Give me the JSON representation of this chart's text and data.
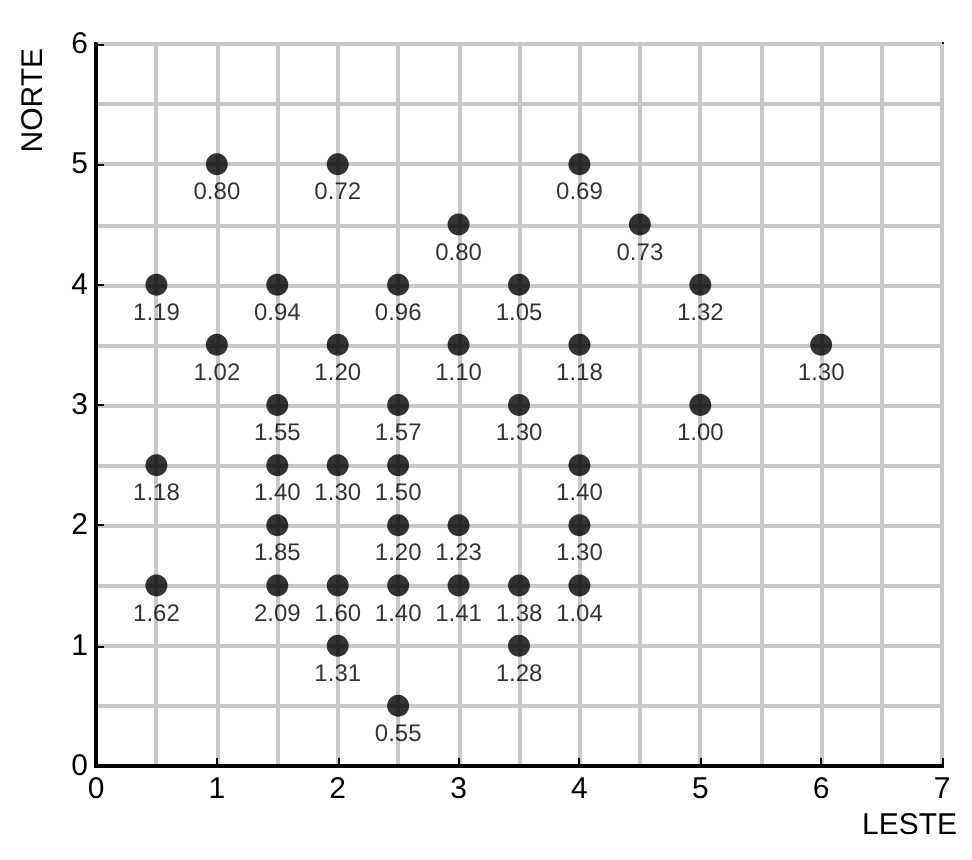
{
  "chart_data": {
    "type": "scatter",
    "xlabel": "LESTE",
    "ylabel": "NORTE",
    "x": [
      1,
      2,
      4,
      3,
      4.5,
      0.5,
      1.5,
      2.5,
      3.5,
      5,
      1,
      2,
      3,
      4,
      6,
      1.5,
      2.5,
      3.5,
      5,
      0.5,
      1.5,
      2,
      2.5,
      4,
      1.5,
      2.5,
      3,
      4,
      0.5,
      1.5,
      2,
      2.5,
      3,
      3.5,
      4,
      2,
      3.5,
      2.5
    ],
    "values": [
      5,
      5,
      5,
      4.5,
      4.5,
      4,
      4,
      4,
      4,
      4,
      3.5,
      3.5,
      3.5,
      3.5,
      3.5,
      3,
      3,
      3,
      3,
      2.5,
      2.5,
      2.5,
      2.5,
      2.5,
      2,
      2,
      2,
      2,
      1.5,
      1.5,
      1.5,
      1.5,
      1.5,
      1.5,
      1.5,
      1,
      1,
      0.5
    ],
    "annotations": [
      {
        "text": "0.80",
        "x": 1,
        "y": 5
      },
      {
        "text": "0.72",
        "x": 2,
        "y": 5
      },
      {
        "text": "0.69",
        "x": 4,
        "y": 5
      },
      {
        "text": "0.80",
        "x": 3,
        "y": 4.5
      },
      {
        "text": "0.73",
        "x": 4.5,
        "y": 4.5
      },
      {
        "text": "1.19",
        "x": 0.5,
        "y": 4
      },
      {
        "text": "0.94",
        "x": 1.5,
        "y": 4
      },
      {
        "text": "0.96",
        "x": 2.5,
        "y": 4
      },
      {
        "text": "1.05",
        "x": 3.5,
        "y": 4
      },
      {
        "text": "1.32",
        "x": 5,
        "y": 4
      },
      {
        "text": "1.02",
        "x": 1,
        "y": 3.5
      },
      {
        "text": "1.20",
        "x": 2,
        "y": 3.5
      },
      {
        "text": "1.10",
        "x": 3,
        "y": 3.5
      },
      {
        "text": "1.18",
        "x": 4,
        "y": 3.5
      },
      {
        "text": "1.30",
        "x": 6,
        "y": 3.5
      },
      {
        "text": "1.55",
        "x": 1.5,
        "y": 3
      },
      {
        "text": "1.57",
        "x": 2.5,
        "y": 3
      },
      {
        "text": "1.30",
        "x": 3.5,
        "y": 3
      },
      {
        "text": "1.00",
        "x": 5,
        "y": 3
      },
      {
        "text": "1.18",
        "x": 0.5,
        "y": 2.5
      },
      {
        "text": "1.40",
        "x": 1.5,
        "y": 2.5
      },
      {
        "text": "1.30",
        "x": 2,
        "y": 2.5
      },
      {
        "text": "1.50",
        "x": 2.5,
        "y": 2.5
      },
      {
        "text": "1.40",
        "x": 4,
        "y": 2.5
      },
      {
        "text": "1.85",
        "x": 1.5,
        "y": 2
      },
      {
        "text": "1.20",
        "x": 2.5,
        "y": 2
      },
      {
        "text": "1.23",
        "x": 3,
        "y": 2
      },
      {
        "text": "1.30",
        "x": 4,
        "y": 2
      },
      {
        "text": "1.62",
        "x": 0.5,
        "y": 1.5
      },
      {
        "text": "2.09",
        "x": 1.5,
        "y": 1.5
      },
      {
        "text": "1.60",
        "x": 2,
        "y": 1.5
      },
      {
        "text": "1.40",
        "x": 2.5,
        "y": 1.5
      },
      {
        "text": "1.41",
        "x": 3,
        "y": 1.5
      },
      {
        "text": "1.38",
        "x": 3.5,
        "y": 1.5
      },
      {
        "text": "1.04",
        "x": 4,
        "y": 1.5
      },
      {
        "text": "1.31",
        "x": 2,
        "y": 1
      },
      {
        "text": "1.28",
        "x": 3.5,
        "y": 1
      },
      {
        "text": "0.55",
        "x": 2.5,
        "y": 0.5
      }
    ],
    "color": "#000000",
    "marker": "circle",
    "xlim": [
      0,
      7
    ],
    "ylim": [
      0,
      6
    ],
    "xticks": [
      0,
      1,
      2,
      3,
      4,
      5,
      6,
      7
    ],
    "yticks": [
      0,
      1,
      2,
      3,
      4,
      5,
      6
    ],
    "grid": true
  }
}
